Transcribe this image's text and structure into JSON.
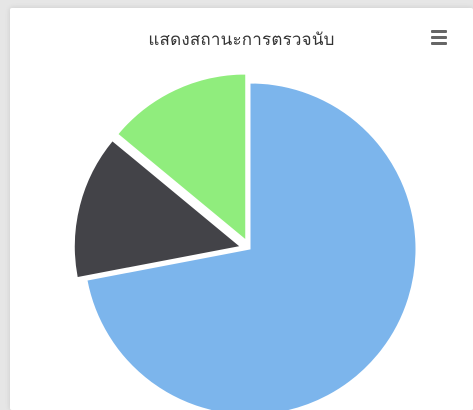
{
  "header": {
    "title": "แสดงสถานะการตรวจนับ",
    "menu_icon": "hamburger-menu-icon"
  },
  "chart_data": {
    "type": "pie",
    "title": "แสดงสถานะการตรวจนับ",
    "legend": "none",
    "slices": [
      {
        "value": 72,
        "color": "#7cb5ec",
        "sliced": false
      },
      {
        "value": 14,
        "color": "#434348",
        "sliced": true
      },
      {
        "value": 14,
        "color": "#90ed7d",
        "sliced": true
      }
    ]
  }
}
